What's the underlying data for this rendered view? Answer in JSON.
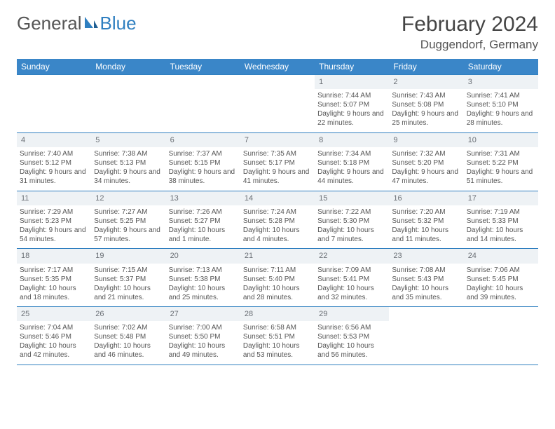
{
  "logo": {
    "text1": "General",
    "text2": "Blue"
  },
  "title": "February 2024",
  "location": "Duggendorf, Germany",
  "colors": {
    "header_bg": "#3a86c8",
    "header_text": "#ffffff",
    "rule": "#2f7fc0",
    "daynum_bg": "#eef2f5",
    "daynum_text": "#6a6f75",
    "body_text": "#555555"
  },
  "day_headers": [
    "Sunday",
    "Monday",
    "Tuesday",
    "Wednesday",
    "Thursday",
    "Friday",
    "Saturday"
  ],
  "weeks": [
    [
      null,
      null,
      null,
      null,
      {
        "n": "1",
        "sr": "7:44 AM",
        "ss": "5:07 PM",
        "dl": "9 hours and 22 minutes."
      },
      {
        "n": "2",
        "sr": "7:43 AM",
        "ss": "5:08 PM",
        "dl": "9 hours and 25 minutes."
      },
      {
        "n": "3",
        "sr": "7:41 AM",
        "ss": "5:10 PM",
        "dl": "9 hours and 28 minutes."
      }
    ],
    [
      {
        "n": "4",
        "sr": "7:40 AM",
        "ss": "5:12 PM",
        "dl": "9 hours and 31 minutes."
      },
      {
        "n": "5",
        "sr": "7:38 AM",
        "ss": "5:13 PM",
        "dl": "9 hours and 34 minutes."
      },
      {
        "n": "6",
        "sr": "7:37 AM",
        "ss": "5:15 PM",
        "dl": "9 hours and 38 minutes."
      },
      {
        "n": "7",
        "sr": "7:35 AM",
        "ss": "5:17 PM",
        "dl": "9 hours and 41 minutes."
      },
      {
        "n": "8",
        "sr": "7:34 AM",
        "ss": "5:18 PM",
        "dl": "9 hours and 44 minutes."
      },
      {
        "n": "9",
        "sr": "7:32 AM",
        "ss": "5:20 PM",
        "dl": "9 hours and 47 minutes."
      },
      {
        "n": "10",
        "sr": "7:31 AM",
        "ss": "5:22 PM",
        "dl": "9 hours and 51 minutes."
      }
    ],
    [
      {
        "n": "11",
        "sr": "7:29 AM",
        "ss": "5:23 PM",
        "dl": "9 hours and 54 minutes."
      },
      {
        "n": "12",
        "sr": "7:27 AM",
        "ss": "5:25 PM",
        "dl": "9 hours and 57 minutes."
      },
      {
        "n": "13",
        "sr": "7:26 AM",
        "ss": "5:27 PM",
        "dl": "10 hours and 1 minute."
      },
      {
        "n": "14",
        "sr": "7:24 AM",
        "ss": "5:28 PM",
        "dl": "10 hours and 4 minutes."
      },
      {
        "n": "15",
        "sr": "7:22 AM",
        "ss": "5:30 PM",
        "dl": "10 hours and 7 minutes."
      },
      {
        "n": "16",
        "sr": "7:20 AM",
        "ss": "5:32 PM",
        "dl": "10 hours and 11 minutes."
      },
      {
        "n": "17",
        "sr": "7:19 AM",
        "ss": "5:33 PM",
        "dl": "10 hours and 14 minutes."
      }
    ],
    [
      {
        "n": "18",
        "sr": "7:17 AM",
        "ss": "5:35 PM",
        "dl": "10 hours and 18 minutes."
      },
      {
        "n": "19",
        "sr": "7:15 AM",
        "ss": "5:37 PM",
        "dl": "10 hours and 21 minutes."
      },
      {
        "n": "20",
        "sr": "7:13 AM",
        "ss": "5:38 PM",
        "dl": "10 hours and 25 minutes."
      },
      {
        "n": "21",
        "sr": "7:11 AM",
        "ss": "5:40 PM",
        "dl": "10 hours and 28 minutes."
      },
      {
        "n": "22",
        "sr": "7:09 AM",
        "ss": "5:41 PM",
        "dl": "10 hours and 32 minutes."
      },
      {
        "n": "23",
        "sr": "7:08 AM",
        "ss": "5:43 PM",
        "dl": "10 hours and 35 minutes."
      },
      {
        "n": "24",
        "sr": "7:06 AM",
        "ss": "5:45 PM",
        "dl": "10 hours and 39 minutes."
      }
    ],
    [
      {
        "n": "25",
        "sr": "7:04 AM",
        "ss": "5:46 PM",
        "dl": "10 hours and 42 minutes."
      },
      {
        "n": "26",
        "sr": "7:02 AM",
        "ss": "5:48 PM",
        "dl": "10 hours and 46 minutes."
      },
      {
        "n": "27",
        "sr": "7:00 AM",
        "ss": "5:50 PM",
        "dl": "10 hours and 49 minutes."
      },
      {
        "n": "28",
        "sr": "6:58 AM",
        "ss": "5:51 PM",
        "dl": "10 hours and 53 minutes."
      },
      {
        "n": "29",
        "sr": "6:56 AM",
        "ss": "5:53 PM",
        "dl": "10 hours and 56 minutes."
      },
      null,
      null
    ]
  ],
  "labels": {
    "sunrise": "Sunrise: ",
    "sunset": "Sunset: ",
    "daylight": "Daylight: "
  }
}
